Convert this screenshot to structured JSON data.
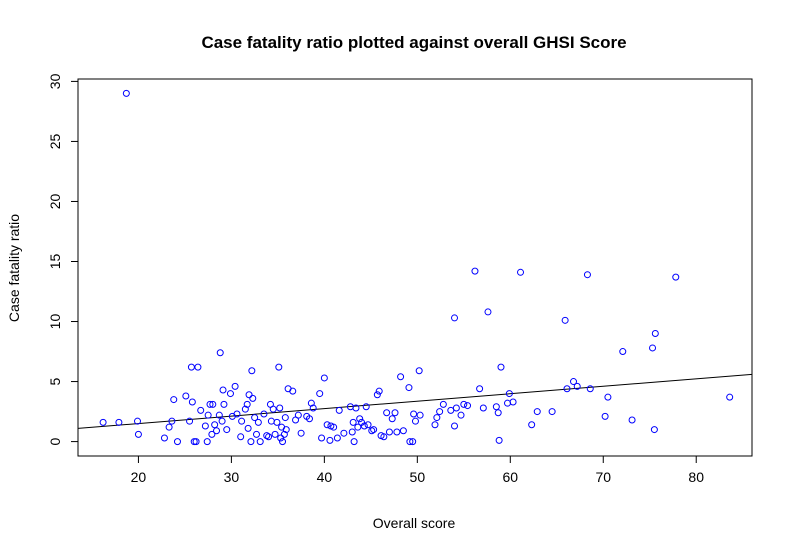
{
  "chart_data": {
    "type": "scatter",
    "title": "Case fatality ratio plotted against overall GHSI Score",
    "xlabel": "Overall score",
    "ylabel": "Case fatality ratio",
    "xlim": [
      13.5,
      86
    ],
    "ylim": [
      -1.2,
      30.2
    ],
    "x_ticks": [
      20,
      30,
      40,
      50,
      60,
      70,
      80
    ],
    "y_ticks": [
      0,
      5,
      10,
      15,
      20,
      25,
      30
    ],
    "grid": false,
    "legend": "none",
    "point_color": "#0000ff",
    "line_color": "#000000",
    "regression_line": {
      "x": [
        13.5,
        86
      ],
      "y": [
        1.1,
        5.6
      ]
    },
    "points": [
      {
        "x": 18.7,
        "y": 29.0
      },
      {
        "x": 16.2,
        "y": 1.6
      },
      {
        "x": 17.9,
        "y": 1.6
      },
      {
        "x": 19.9,
        "y": 1.7
      },
      {
        "x": 20.0,
        "y": 0.6
      },
      {
        "x": 22.8,
        "y": 0.3
      },
      {
        "x": 23.3,
        "y": 1.2
      },
      {
        "x": 23.6,
        "y": 1.7
      },
      {
        "x": 23.8,
        "y": 3.5
      },
      {
        "x": 24.2,
        "y": 0.0
      },
      {
        "x": 25.1,
        "y": 3.8
      },
      {
        "x": 25.5,
        "y": 1.7
      },
      {
        "x": 25.7,
        "y": 6.2
      },
      {
        "x": 25.8,
        "y": 3.3
      },
      {
        "x": 26.0,
        "y": 0.0
      },
      {
        "x": 26.2,
        "y": 0.0
      },
      {
        "x": 26.4,
        "y": 6.2
      },
      {
        "x": 26.7,
        "y": 2.6
      },
      {
        "x": 27.2,
        "y": 1.3
      },
      {
        "x": 27.4,
        "y": 0.0
      },
      {
        "x": 27.5,
        "y": 2.2
      },
      {
        "x": 27.7,
        "y": 3.1
      },
      {
        "x": 27.9,
        "y": 0.6
      },
      {
        "x": 28.0,
        "y": 3.1
      },
      {
        "x": 28.2,
        "y": 1.4
      },
      {
        "x": 28.4,
        "y": 0.9
      },
      {
        "x": 28.7,
        "y": 2.2
      },
      {
        "x": 28.8,
        "y": 7.4
      },
      {
        "x": 29.0,
        "y": 1.7
      },
      {
        "x": 29.1,
        "y": 4.3
      },
      {
        "x": 29.2,
        "y": 3.1
      },
      {
        "x": 29.5,
        "y": 1.0
      },
      {
        "x": 29.9,
        "y": 4.0
      },
      {
        "x": 30.1,
        "y": 2.1
      },
      {
        "x": 30.4,
        "y": 4.6
      },
      {
        "x": 30.6,
        "y": 2.3
      },
      {
        "x": 31.0,
        "y": 0.4
      },
      {
        "x": 31.1,
        "y": 1.7
      },
      {
        "x": 31.5,
        "y": 2.7
      },
      {
        "x": 31.7,
        "y": 3.1
      },
      {
        "x": 31.8,
        "y": 1.1
      },
      {
        "x": 31.9,
        "y": 3.9
      },
      {
        "x": 32.1,
        "y": 0.0
      },
      {
        "x": 32.2,
        "y": 5.9
      },
      {
        "x": 32.3,
        "y": 3.6
      },
      {
        "x": 32.5,
        "y": 2.0
      },
      {
        "x": 32.7,
        "y": 0.6
      },
      {
        "x": 32.9,
        "y": 1.6
      },
      {
        "x": 33.1,
        "y": 0.0
      },
      {
        "x": 33.5,
        "y": 2.3
      },
      {
        "x": 33.8,
        "y": 0.5
      },
      {
        "x": 34.0,
        "y": 0.4
      },
      {
        "x": 34.2,
        "y": 3.1
      },
      {
        "x": 34.3,
        "y": 1.7
      },
      {
        "x": 34.5,
        "y": 2.7
      },
      {
        "x": 34.7,
        "y": 0.6
      },
      {
        "x": 34.9,
        "y": 1.6
      },
      {
        "x": 35.1,
        "y": 6.2
      },
      {
        "x": 35.2,
        "y": 2.8
      },
      {
        "x": 35.3,
        "y": 0.3
      },
      {
        "x": 35.4,
        "y": 1.2
      },
      {
        "x": 35.5,
        "y": 0.0
      },
      {
        "x": 35.7,
        "y": 0.6
      },
      {
        "x": 35.8,
        "y": 2.0
      },
      {
        "x": 35.9,
        "y": 1.0
      },
      {
        "x": 36.1,
        "y": 4.4
      },
      {
        "x": 36.6,
        "y": 4.2
      },
      {
        "x": 36.9,
        "y": 1.8
      },
      {
        "x": 37.2,
        "y": 2.2
      },
      {
        "x": 37.5,
        "y": 0.7
      },
      {
        "x": 38.1,
        "y": 2.1
      },
      {
        "x": 38.4,
        "y": 1.9
      },
      {
        "x": 38.6,
        "y": 3.2
      },
      {
        "x": 38.8,
        "y": 2.8
      },
      {
        "x": 39.5,
        "y": 4.0
      },
      {
        "x": 39.7,
        "y": 0.3
      },
      {
        "x": 40.0,
        "y": 5.3
      },
      {
        "x": 40.3,
        "y": 1.4
      },
      {
        "x": 40.6,
        "y": 0.1
      },
      {
        "x": 40.7,
        "y": 1.3
      },
      {
        "x": 41.0,
        "y": 1.2
      },
      {
        "x": 41.4,
        "y": 0.3
      },
      {
        "x": 41.6,
        "y": 2.6
      },
      {
        "x": 42.1,
        "y": 0.7
      },
      {
        "x": 42.8,
        "y": 2.9
      },
      {
        "x": 43.0,
        "y": 0.8
      },
      {
        "x": 43.1,
        "y": 1.6
      },
      {
        "x": 43.2,
        "y": 0.0
      },
      {
        "x": 43.4,
        "y": 2.8
      },
      {
        "x": 43.6,
        "y": 1.2
      },
      {
        "x": 43.8,
        "y": 1.9
      },
      {
        "x": 44.0,
        "y": 1.6
      },
      {
        "x": 44.3,
        "y": 1.3
      },
      {
        "x": 44.5,
        "y": 2.9
      },
      {
        "x": 44.7,
        "y": 1.4
      },
      {
        "x": 45.1,
        "y": 0.9
      },
      {
        "x": 45.3,
        "y": 1.0
      },
      {
        "x": 45.7,
        "y": 3.9
      },
      {
        "x": 45.9,
        "y": 4.2
      },
      {
        "x": 46.1,
        "y": 0.5
      },
      {
        "x": 46.4,
        "y": 0.4
      },
      {
        "x": 46.7,
        "y": 2.4
      },
      {
        "x": 47.0,
        "y": 0.8
      },
      {
        "x": 47.3,
        "y": 1.9
      },
      {
        "x": 47.6,
        "y": 2.4
      },
      {
        "x": 47.8,
        "y": 0.8
      },
      {
        "x": 48.2,
        "y": 5.4
      },
      {
        "x": 48.5,
        "y": 0.9
      },
      {
        "x": 49.1,
        "y": 4.5
      },
      {
        "x": 49.2,
        "y": 0.0
      },
      {
        "x": 49.5,
        "y": 0.0
      },
      {
        "x": 49.6,
        "y": 2.3
      },
      {
        "x": 49.8,
        "y": 1.7
      },
      {
        "x": 50.2,
        "y": 5.9
      },
      {
        "x": 50.3,
        "y": 2.2
      },
      {
        "x": 51.9,
        "y": 1.4
      },
      {
        "x": 52.1,
        "y": 2.0
      },
      {
        "x": 52.4,
        "y": 2.5
      },
      {
        "x": 52.8,
        "y": 3.1
      },
      {
        "x": 53.6,
        "y": 2.6
      },
      {
        "x": 54.0,
        "y": 10.3
      },
      {
        "x": 54.0,
        "y": 1.3
      },
      {
        "x": 54.2,
        "y": 2.8
      },
      {
        "x": 54.7,
        "y": 2.2
      },
      {
        "x": 55.0,
        "y": 3.1
      },
      {
        "x": 55.4,
        "y": 3.0
      },
      {
        "x": 56.2,
        "y": 14.2
      },
      {
        "x": 56.7,
        "y": 4.4
      },
      {
        "x": 57.1,
        "y": 2.8
      },
      {
        "x": 57.6,
        "y": 10.8
      },
      {
        "x": 58.5,
        "y": 2.9
      },
      {
        "x": 58.7,
        "y": 2.4
      },
      {
        "x": 58.8,
        "y": 0.1
      },
      {
        "x": 59.0,
        "y": 6.2
      },
      {
        "x": 59.7,
        "y": 3.2
      },
      {
        "x": 59.9,
        "y": 4.0
      },
      {
        "x": 60.3,
        "y": 3.3
      },
      {
        "x": 61.1,
        "y": 14.1
      },
      {
        "x": 62.3,
        "y": 1.4
      },
      {
        "x": 62.9,
        "y": 2.5
      },
      {
        "x": 64.5,
        "y": 2.5
      },
      {
        "x": 65.9,
        "y": 10.1
      },
      {
        "x": 66.1,
        "y": 4.4
      },
      {
        "x": 66.8,
        "y": 5.0
      },
      {
        "x": 67.2,
        "y": 4.6
      },
      {
        "x": 68.3,
        "y": 13.9
      },
      {
        "x": 68.6,
        "y": 4.4
      },
      {
        "x": 70.2,
        "y": 2.1
      },
      {
        "x": 70.5,
        "y": 3.7
      },
      {
        "x": 72.1,
        "y": 7.5
      },
      {
        "x": 73.1,
        "y": 1.8
      },
      {
        "x": 75.3,
        "y": 7.8
      },
      {
        "x": 75.6,
        "y": 9.0
      },
      {
        "x": 75.5,
        "y": 1.0
      },
      {
        "x": 77.8,
        "y": 13.7
      },
      {
        "x": 83.6,
        "y": 3.7
      }
    ]
  }
}
